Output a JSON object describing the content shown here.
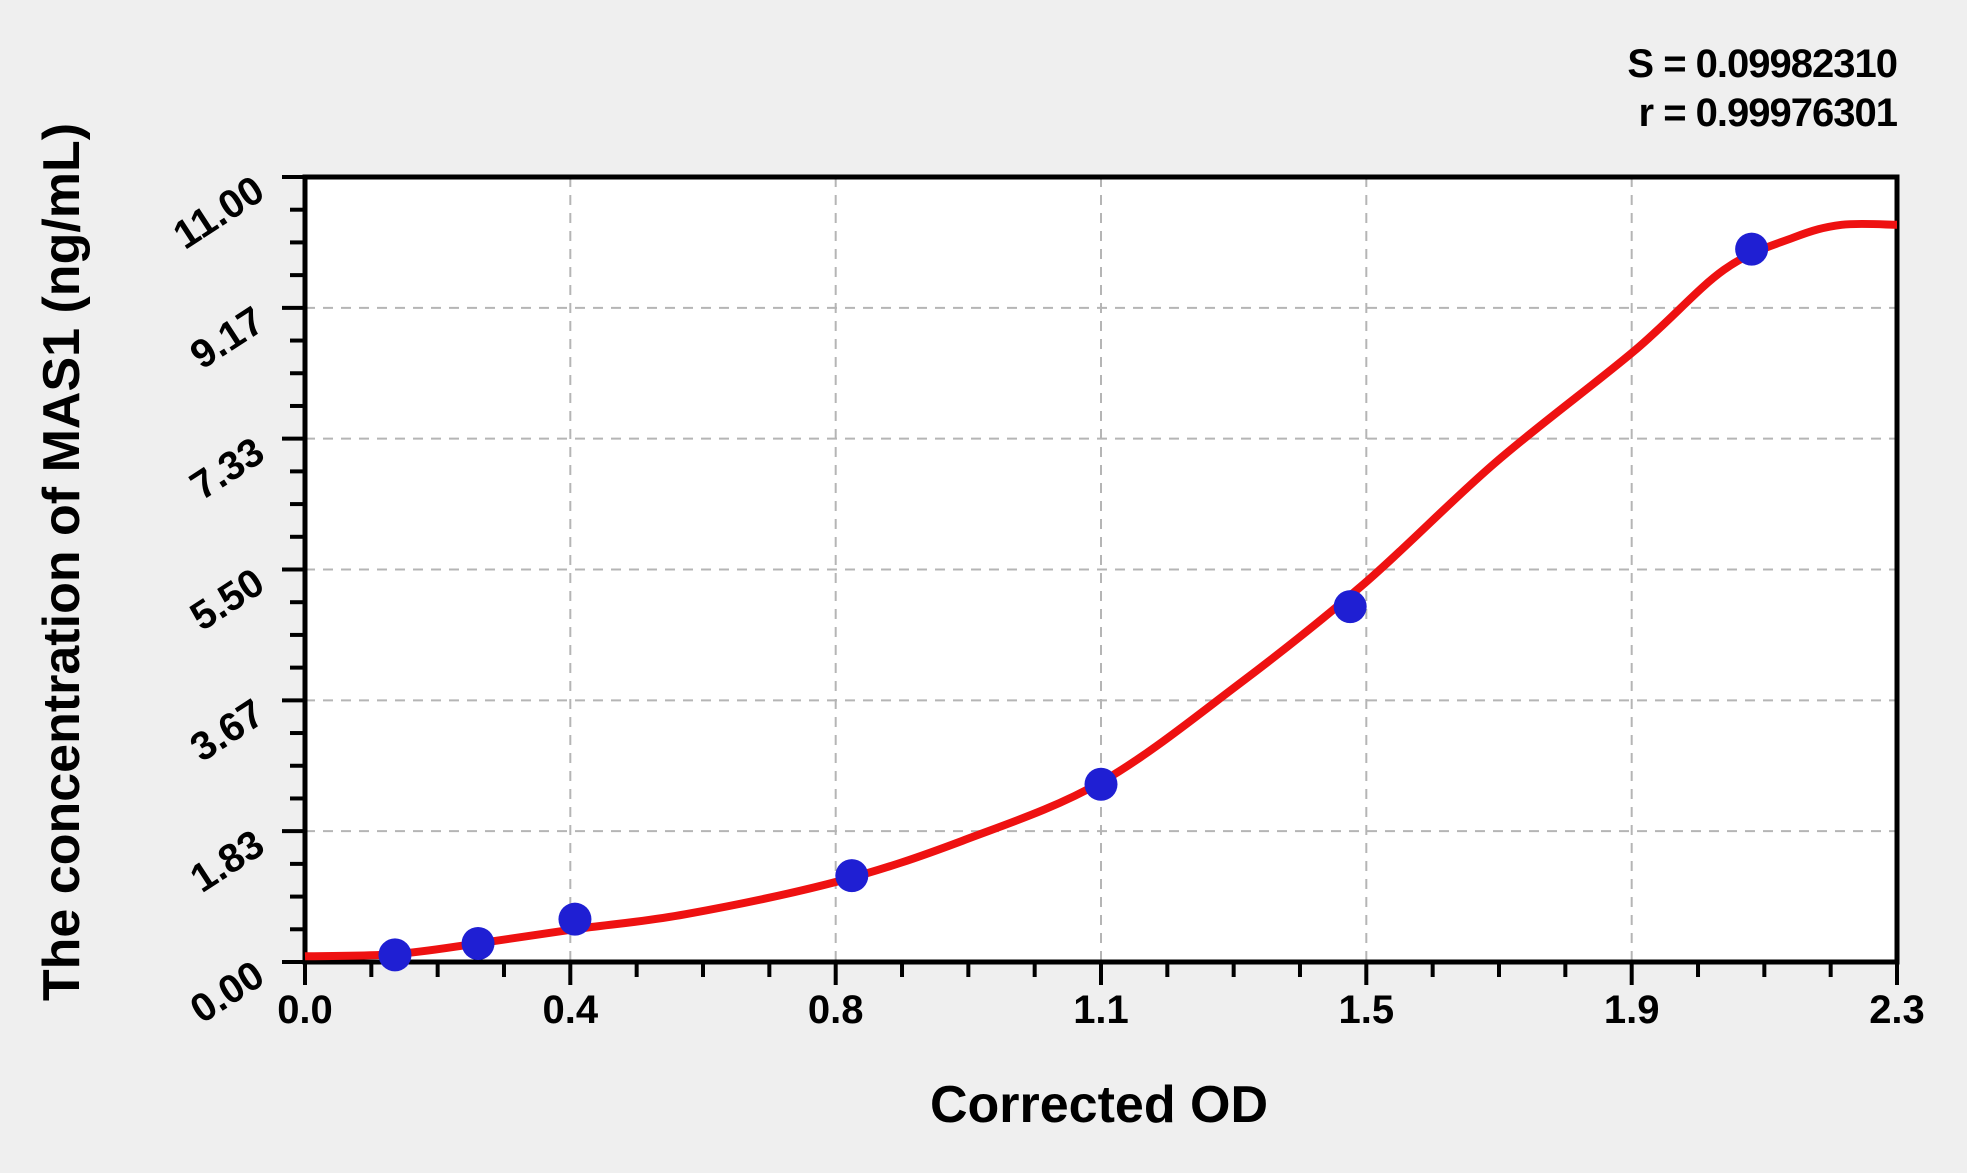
{
  "stats": {
    "s_line": "S = 0.09982310",
    "r_line": "r = 0.99976301"
  },
  "chart_data": {
    "type": "scatter",
    "title": "",
    "xlabel": "Corrected OD",
    "ylabel": "The concentration of MAS1 (ng/mL)",
    "xlim": [
      0,
      2.3
    ],
    "ylim": [
      0,
      11
    ],
    "grid": "dashed",
    "legend_position": "none",
    "x_ticks": {
      "values": [
        0,
        0.3833,
        0.7667,
        1.15,
        1.5333,
        1.9167,
        2.3
      ],
      "labels": [
        "0.0",
        "0.4",
        "0.8",
        "1.1",
        "1.5",
        "1.9",
        "2.3"
      ],
      "minor_per_interval": 3
    },
    "y_ticks": {
      "values": [
        0,
        1.8333,
        3.6667,
        5.5,
        7.3333,
        9.1667,
        11
      ],
      "labels": [
        "0.00",
        "1.83",
        "3.67",
        "5.50",
        "7.33",
        "9.17",
        "11.00"
      ],
      "minor_per_interval": 3
    },
    "series": [
      {
        "name": "standard-points",
        "kind": "scatter",
        "color": "#1f1fd3",
        "marker": "circle",
        "points": [
          [
            0.13,
            0.1
          ],
          [
            0.25,
            0.26
          ],
          [
            0.39,
            0.6
          ],
          [
            0.79,
            1.21
          ],
          [
            1.15,
            2.49
          ],
          [
            1.51,
            4.98
          ],
          [
            2.09,
            9.99
          ]
        ]
      },
      {
        "name": "fitted-curve",
        "kind": "line",
        "color": "#ee1111",
        "points": [
          [
            0.0,
            0.08
          ],
          [
            0.13,
            0.11
          ],
          [
            0.25,
            0.26
          ],
          [
            0.39,
            0.46
          ],
          [
            0.55,
            0.67
          ],
          [
            0.77,
            1.13
          ],
          [
            0.95,
            1.7
          ],
          [
            1.15,
            2.52
          ],
          [
            1.35,
            3.9
          ],
          [
            1.53,
            5.3
          ],
          [
            1.72,
            7.0
          ],
          [
            1.92,
            8.56
          ],
          [
            2.05,
            9.7
          ],
          [
            2.15,
            10.15
          ],
          [
            2.22,
            10.33
          ],
          [
            2.3,
            10.33
          ]
        ]
      }
    ],
    "colors": {
      "background": "#efefef",
      "plot_background": "#ffffff",
      "axis": "#000000",
      "grid": "#b5b5b5",
      "curve": "#ee1111",
      "points": "#1f1fd3"
    }
  }
}
